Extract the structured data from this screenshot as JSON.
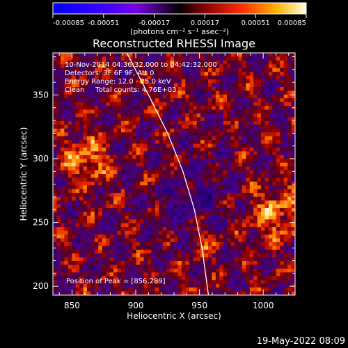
{
  "chart_data": {
    "type": "heatmap",
    "title": "Reconstructed RHESSI Image",
    "xlabel": "Heliocentric X (arcsec)",
    "ylabel": "Heliocentric Y (arcsec)",
    "xlim": [
      835,
      1025
    ],
    "ylim": [
      193,
      383
    ],
    "x_ticks": [
      850,
      900,
      950,
      1000
    ],
    "y_ticks": [
      200,
      250,
      300,
      350
    ],
    "colorbar": {
      "ticks": [
        "-0.00085",
        "-0.00051",
        "-0.00017",
        "0.00017",
        "0.00051",
        "0.00085"
      ],
      "range": [
        -0.00085,
        0.00085
      ],
      "label": "(photons cm⁻² s⁻¹ asec⁻²)"
    },
    "annotations": {
      "time_range": "10-Nov-2014 04:36:32.000 to 04:42:32.000",
      "detectors": "Detectors: 3F 6F 9F, Att 0",
      "energy_range": "Energy Range: 12.0 - 25.0 keV",
      "clean": "Clean     Total counts: 4.76E+03",
      "peak": "Position of Peak = [856,289]"
    },
    "limb_curve": [
      [
        893,
        383
      ],
      [
        910,
        350
      ],
      [
        925,
        320
      ],
      [
        937,
        290
      ],
      [
        946,
        260
      ],
      [
        952,
        230
      ],
      [
        957,
        193
      ]
    ],
    "colors": {
      "background": "#000000",
      "limb": "#ffffff"
    }
  },
  "footer": {
    "date": "19-May-2022 08:09"
  }
}
